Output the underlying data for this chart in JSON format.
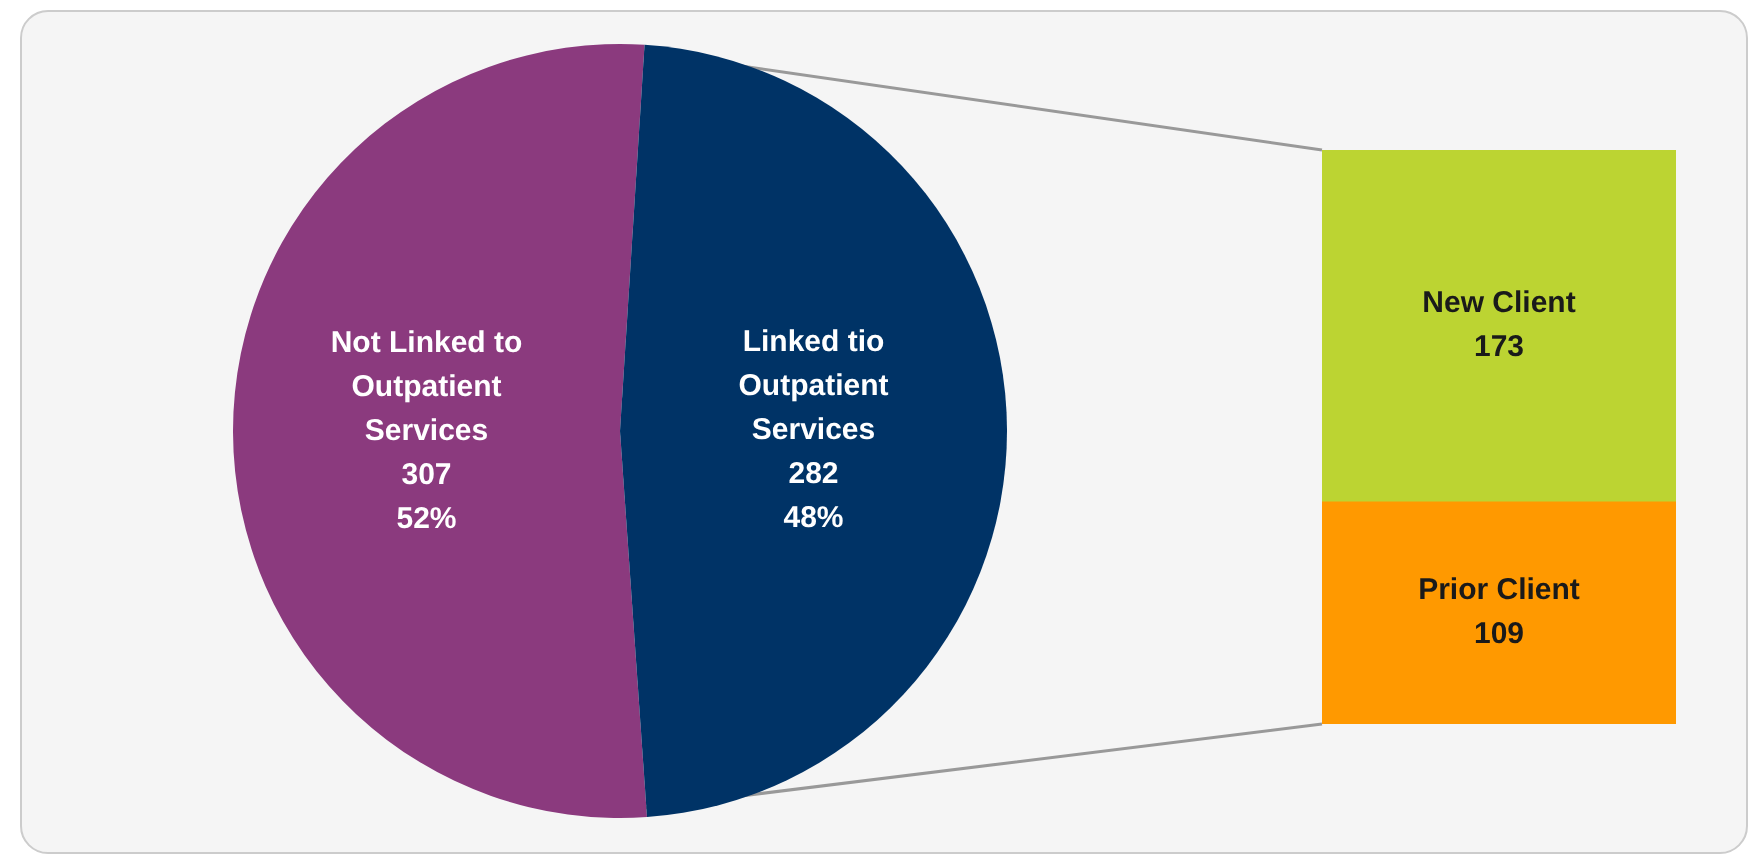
{
  "chart_data": [
    {
      "type": "pie",
      "categories": [
        "Not Linked to Outpatient Services",
        "Linked tio Outpatient Services"
      ],
      "values": [
        307,
        282
      ],
      "colors": [
        "#8b3a7e",
        "#003366"
      ],
      "value_labels": [
        "307\n52%",
        "282\n48%"
      ],
      "legend": false
    },
    {
      "type": "bar",
      "stacked": true,
      "categories": [
        null
      ],
      "data_labels": true,
      "legend": false,
      "series": [
        {
          "name": "Prior Client",
          "color": "#ff9900",
          "values": [
            109
          ]
        },
        {
          "name": "New Client",
          "color": "#bcd432",
          "values": [
            173
          ]
        }
      ]
    }
  ]
}
